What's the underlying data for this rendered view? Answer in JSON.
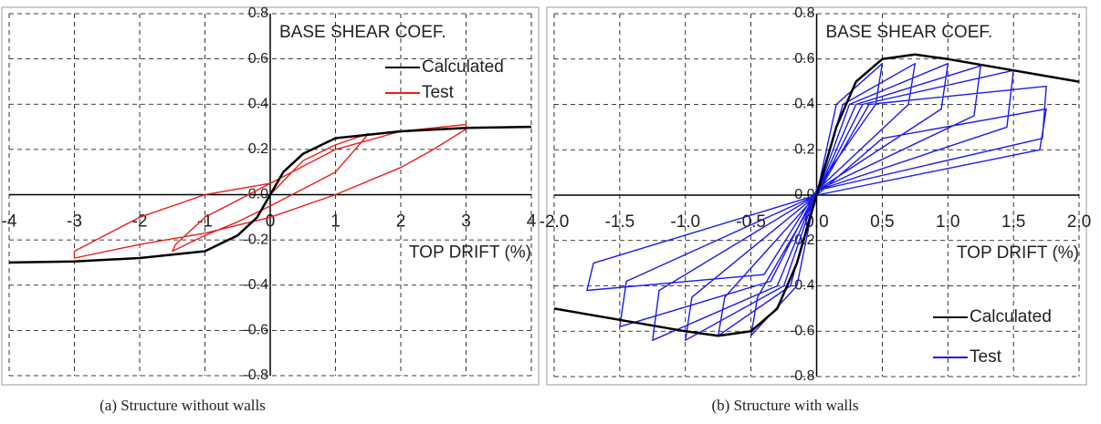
{
  "chart_data": [
    {
      "type": "line",
      "caption": "(a) Structure without walls",
      "ylabel": "BASE SHEAR COEF.",
      "xlabel": "TOP DRIFT (%)",
      "xlim": [
        -4,
        4
      ],
      "ylim": [
        -0.8,
        0.8
      ],
      "grid": true,
      "legend": "upper right",
      "xticks": [
        -4,
        -3,
        -2,
        -1,
        0,
        1,
        2,
        3,
        4
      ],
      "yticks": [
        -0.8,
        -0.6,
        -0.4,
        -0.2,
        {
          "value": 0,
          "label": "0.0"
        },
        0.2,
        0.4,
        0.6,
        0.8
      ],
      "series": [
        {
          "name": "Calculated",
          "color": "#000000",
          "x": [
            -4,
            -3,
            -2,
            -1,
            -0.5,
            -0.2,
            0,
            0.2,
            0.5,
            1,
            2,
            3,
            4
          ],
          "values": [
            -0.3,
            -0.295,
            -0.28,
            -0.25,
            -0.18,
            -0.1,
            0,
            0.1,
            0.18,
            0.25,
            0.28,
            0.295,
            0.3
          ]
        },
        {
          "name": "Test",
          "color": "#e8201c",
          "x": [
            0,
            0.5,
            1,
            1.5,
            1.45,
            1,
            0,
            -0.5,
            -1,
            -1.5,
            -1.45,
            -1,
            0,
            1,
            2,
            3,
            3,
            2.5,
            2,
            1,
            0,
            -1,
            -2,
            -3,
            -3,
            -2,
            -1,
            0
          ],
          "values": [
            0,
            0.15,
            0.22,
            0.27,
            0.25,
            0.1,
            -0.05,
            -0.12,
            -0.18,
            -0.25,
            -0.22,
            -0.1,
            0.05,
            0.2,
            0.28,
            0.31,
            0.29,
            0.2,
            0.12,
            0,
            -0.1,
            -0.17,
            -0.22,
            -0.28,
            -0.25,
            -0.1,
            0,
            0.05
          ]
        }
      ]
    },
    {
      "type": "line",
      "caption": "(b) Structure with walls",
      "ylabel": "BASE SHEAR COEF.",
      "xlabel": "TOP DRIFT (%)",
      "xlim": [
        -2,
        2
      ],
      "ylim": [
        -0.8,
        0.8
      ],
      "grid": true,
      "legend": "lower right",
      "xticks": [
        {
          "value": -2,
          "label": "-2.0"
        },
        -1.5,
        {
          "value": -1,
          "label": "-1.0"
        },
        -0.5,
        {
          "value": 0,
          "label": "0.0"
        },
        0.5,
        {
          "value": 1,
          "label": "1.0"
        },
        1.5,
        {
          "value": 2,
          "label": "2.0"
        }
      ],
      "yticks": [
        -0.8,
        -0.6,
        -0.4,
        -0.2,
        {
          "value": 0,
          "label": "0.0"
        },
        0.2,
        0.4,
        0.6,
        0.8
      ],
      "series": [
        {
          "name": "Calculated",
          "color": "#000000",
          "x": [
            -2,
            -1.5,
            -1,
            -0.75,
            -0.5,
            -0.3,
            -0.15,
            0,
            0.15,
            0.3,
            0.5,
            0.75,
            1,
            1.5,
            2
          ],
          "values": [
            -0.5,
            -0.55,
            -0.6,
            -0.62,
            -0.6,
            -0.5,
            -0.3,
            0,
            0.3,
            0.5,
            0.6,
            0.62,
            0.6,
            0.55,
            0.5
          ]
        },
        {
          "name": "Test",
          "color": "#1a1aee",
          "x": [
            0,
            0.15,
            0.5,
            0.45,
            0,
            -0.15,
            -0.5,
            -0.45,
            0,
            0.2,
            0.75,
            0.7,
            0,
            -0.2,
            -0.75,
            -0.7,
            0,
            0.25,
            1.0,
            0.95,
            0,
            -0.25,
            -1.0,
            -0.95,
            0,
            0.3,
            1.25,
            1.2,
            0,
            -0.3,
            -1.25,
            -1.2,
            0,
            0.35,
            1.5,
            1.45,
            0,
            -0.35,
            -1.5,
            -1.45,
            0,
            0.4,
            1.75,
            1.72,
            0,
            -0.4,
            -1.75,
            -1.7,
            0,
            0.5,
            1.75,
            1.7,
            0
          ],
          "values": [
            0,
            0.4,
            0.58,
            0.4,
            0.03,
            -0.4,
            -0.62,
            -0.45,
            0,
            0.4,
            0.58,
            0.4,
            0.02,
            -0.4,
            -0.62,
            -0.45,
            0,
            0.4,
            0.58,
            0.38,
            0.02,
            -0.4,
            -0.64,
            -0.45,
            0,
            0.4,
            0.57,
            0.35,
            0.02,
            -0.4,
            -0.64,
            -0.42,
            0,
            0.4,
            0.55,
            0.3,
            0.02,
            -0.38,
            -0.58,
            -0.38,
            0,
            0.4,
            0.48,
            0.25,
            0.02,
            -0.35,
            -0.42,
            -0.3,
            0,
            0.25,
            0.38,
            0.2,
            0
          ]
        }
      ]
    }
  ]
}
